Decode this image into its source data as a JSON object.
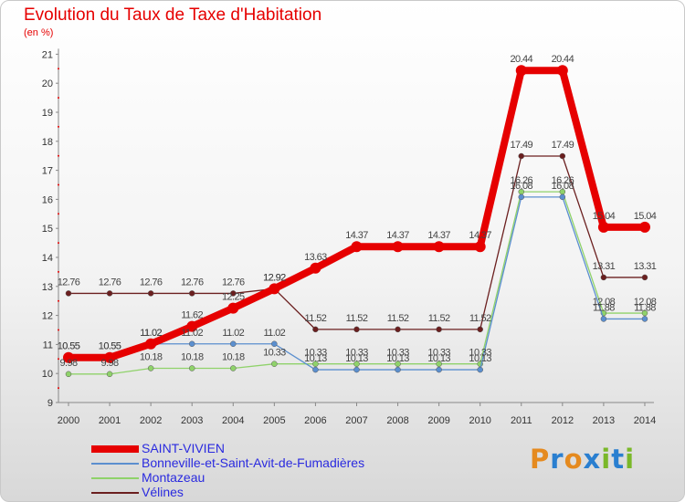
{
  "chart_data": {
    "type": "line",
    "title": "Evolution du Taux de Taxe d'Habitation",
    "subtitle": "(en %)",
    "x": [
      "2000",
      "2001",
      "2002",
      "2003",
      "2004",
      "2005",
      "2006",
      "2007",
      "2008",
      "2009",
      "2010",
      "2011",
      "2012",
      "2013",
      "2014"
    ],
    "ylim": [
      9,
      21
    ],
    "yticks": [
      9,
      10,
      11,
      12,
      13,
      14,
      15,
      16,
      17,
      18,
      19,
      20,
      21
    ],
    "grid": false,
    "legend_position": "bottom-left",
    "series": [
      {
        "name": "SAINT-VIVIEN",
        "color": "#e60000",
        "values": [
          10.55,
          10.55,
          11.02,
          11.62,
          12.25,
          12.92,
          13.63,
          14.37,
          14.37,
          14.37,
          14.37,
          20.44,
          20.44,
          15.04,
          15.04
        ]
      },
      {
        "name": "Bonneville-et-Saint-Avit-de-Fumadières",
        "color": "#5b8fcf",
        "values": [
          10.55,
          10.55,
          11.02,
          11.02,
          11.02,
          11.02,
          10.13,
          10.13,
          10.13,
          10.13,
          10.13,
          16.08,
          16.08,
          11.88,
          11.88
        ]
      },
      {
        "name": "Montazeau",
        "color": "#8fd26a",
        "values": [
          9.98,
          9.98,
          10.18,
          10.18,
          10.18,
          10.33,
          10.33,
          10.33,
          10.33,
          10.33,
          10.33,
          16.26,
          16.26,
          12.08,
          12.08
        ]
      },
      {
        "name": "Vélines",
        "color": "#6b1f1f",
        "values": [
          12.76,
          12.76,
          12.76,
          12.76,
          12.76,
          12.92,
          11.52,
          11.52,
          11.52,
          11.52,
          11.52,
          17.49,
          17.49,
          13.31,
          13.31
        ]
      }
    ]
  },
  "logo": {
    "text": "Proxiti",
    "letter_colors": [
      "#e58a1f",
      "#2a7fd0",
      "#e58a1f",
      "#2a7fd0",
      "#7ab829",
      "#2a7fd0",
      "#7ab829"
    ]
  }
}
